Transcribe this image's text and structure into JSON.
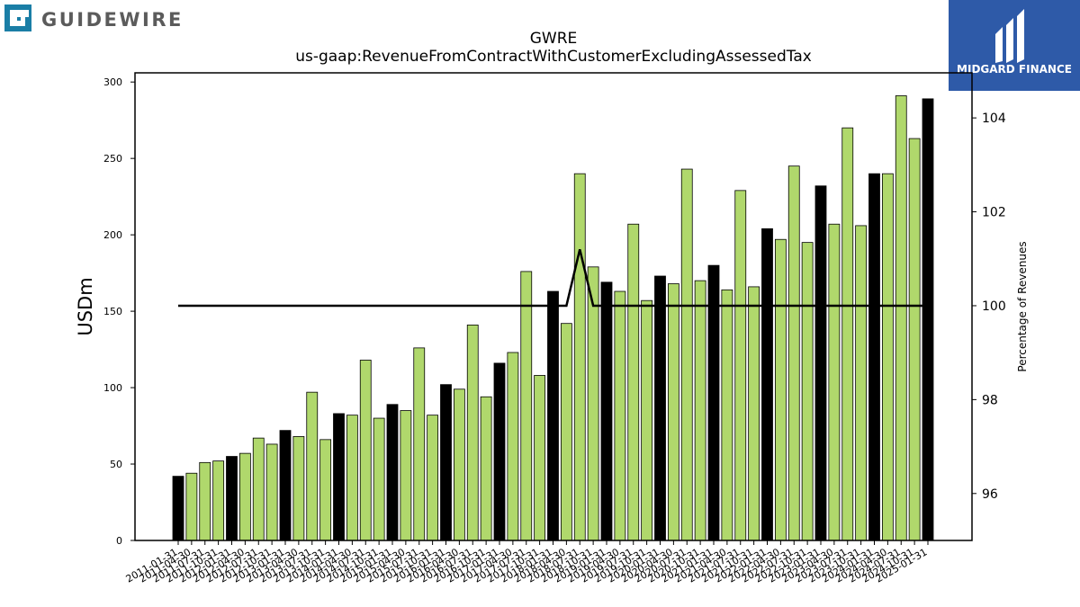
{
  "brand": {
    "left_logo_text": "GUIDEWIRE",
    "right_logo_text": "MIDGARD FINANCE"
  },
  "chart_data": {
    "type": "bar",
    "title": "GWRE",
    "subtitle": "us-gaap:RevenueFromContractWithCustomerExcludingAssessedTax",
    "ylabel": "USDm",
    "y2label": "Percentage of Revenues",
    "ylim": [
      0,
      306
    ],
    "y2lim": [
      95.0,
      104.96
    ],
    "yticks": [
      0,
      50,
      100,
      150,
      200,
      250,
      300
    ],
    "y2ticks": [
      96,
      98,
      100,
      102,
      104
    ],
    "grid": false,
    "categories": [
      "2011-01-31",
      "2011-04-30",
      "2011-07-31",
      "2011-10-31",
      "2012-01-31",
      "2012-04-30",
      "2012-07-31",
      "2012-10-31",
      "2013-01-31",
      "2013-04-30",
      "2013-07-31",
      "2013-10-31",
      "2014-01-31",
      "2014-04-30",
      "2014-07-31",
      "2014-10-31",
      "2015-01-31",
      "2015-04-30",
      "2015-07-31",
      "2015-10-31",
      "2016-01-31",
      "2016-04-30",
      "2016-07-31",
      "2016-10-31",
      "2017-01-31",
      "2017-04-30",
      "2017-07-31",
      "2017-10-31",
      "2018-01-31",
      "2018-04-30",
      "2018-07-31",
      "2018-10-31",
      "2019-01-31",
      "2019-04-30",
      "2019-07-31",
      "2019-10-31",
      "2020-01-31",
      "2020-04-30",
      "2020-07-31",
      "2020-10-31",
      "2021-01-31",
      "2021-04-30",
      "2021-07-31",
      "2021-10-31",
      "2022-01-31",
      "2022-04-30",
      "2022-07-31",
      "2022-10-31",
      "2023-01-31",
      "2023-04-30",
      "2023-07-31",
      "2023-10-31",
      "2024-01-31",
      "2024-04-30",
      "2024-07-31",
      "2024-10-31",
      "2025-01-31"
    ],
    "series": [
      {
        "type": "bar",
        "values": [
          42,
          44,
          51,
          52,
          55,
          57,
          67,
          63,
          72,
          68,
          97,
          66,
          83,
          82,
          118,
          80,
          89,
          85,
          126,
          82,
          102,
          99,
          141,
          94,
          116,
          123,
          176,
          108,
          163,
          142,
          240,
          179,
          169,
          163,
          207,
          157,
          173,
          168,
          243,
          170,
          180,
          164,
          229,
          166,
          204,
          197,
          245,
          195,
          232,
          207,
          270,
          206,
          240,
          240,
          291,
          263,
          289
        ],
        "highlight": [
          true,
          false,
          false,
          false,
          true,
          false,
          false,
          false,
          true,
          false,
          false,
          false,
          true,
          false,
          false,
          false,
          true,
          false,
          false,
          false,
          true,
          false,
          false,
          false,
          true,
          false,
          false,
          false,
          true,
          false,
          false,
          false,
          true,
          false,
          false,
          false,
          true,
          false,
          false,
          false,
          true,
          false,
          false,
          false,
          true,
          false,
          false,
          false,
          true,
          false,
          false,
          false,
          true,
          false,
          false,
          false,
          true
        ],
        "color": "#b0d86c",
        "highlight_color": "#000000"
      },
      {
        "type": "line",
        "axis": "right",
        "color": "#000000",
        "values": [
          100,
          100,
          100,
          100,
          100,
          100,
          100,
          100,
          100,
          100,
          100,
          100,
          100,
          100,
          100,
          100,
          100,
          100,
          100,
          100,
          100,
          100,
          100,
          100,
          100,
          100,
          100,
          100,
          100,
          100,
          101.2,
          100,
          100,
          100,
          100,
          100,
          100,
          100,
          100,
          100,
          100,
          100,
          100,
          100,
          100,
          100,
          100,
          100,
          100,
          100,
          100,
          100,
          100,
          100,
          100,
          100,
          100
        ]
      }
    ]
  }
}
